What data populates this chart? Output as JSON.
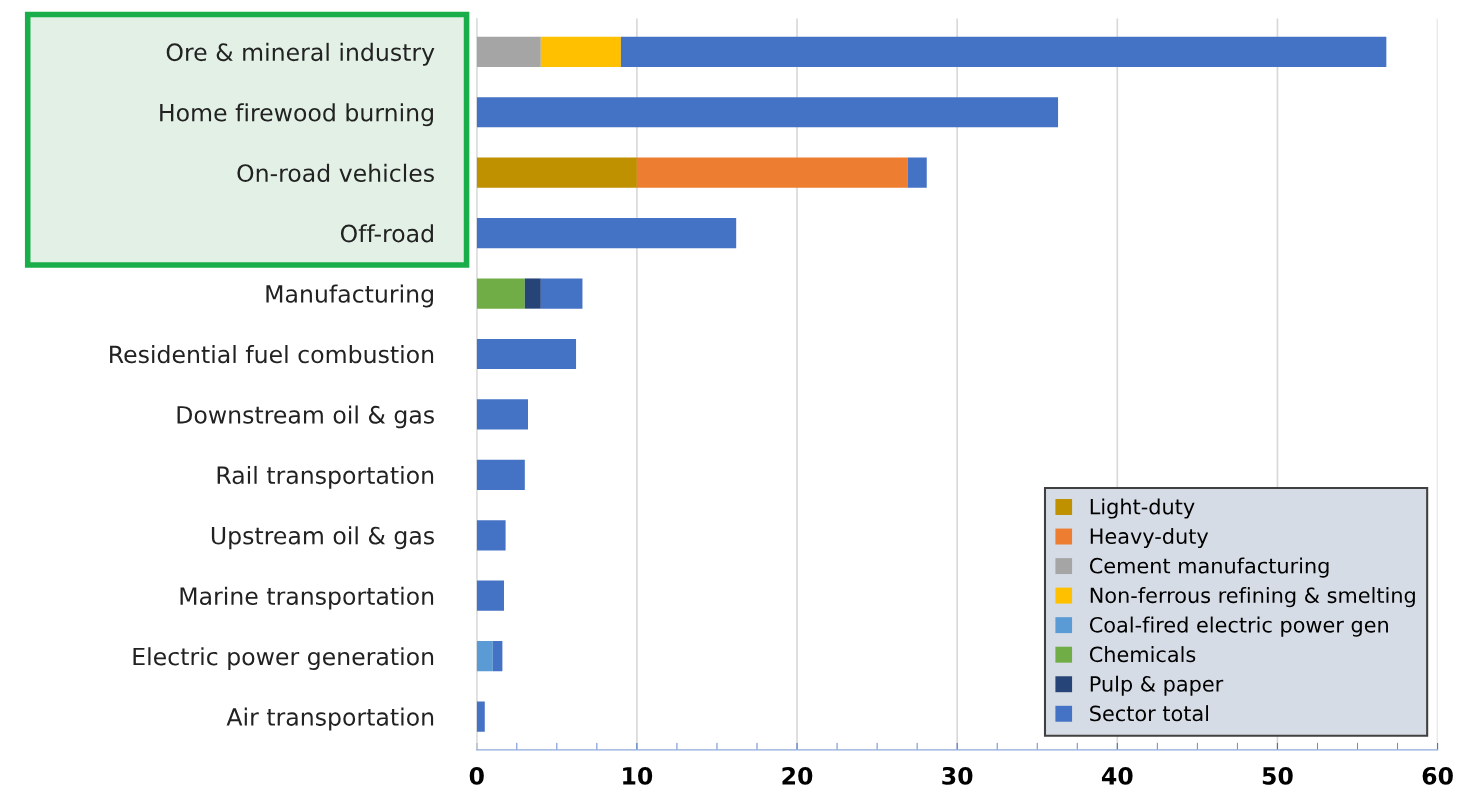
{
  "chart_data": {
    "type": "bar",
    "orientation": "horizontal",
    "stacked": true,
    "categories": [
      "Ore & mineral industry",
      "Home firewood burning",
      "On-road vehicles",
      "Off-road",
      "Manufacturing",
      "Residential fuel combustion",
      "Downstream oil & gas",
      "Rail transportation",
      "Upstream oil & gas",
      "Marine transportation",
      "Electric power generation",
      "Air transportation"
    ],
    "series": [
      {
        "name": "Light-duty",
        "color": "#bf9000",
        "values": [
          null,
          null,
          10,
          null,
          null,
          null,
          null,
          null,
          null,
          null,
          null,
          null
        ]
      },
      {
        "name": "Heavy-duty",
        "color": "#ed7d31",
        "values": [
          null,
          null,
          16.9,
          null,
          null,
          null,
          null,
          null,
          null,
          null,
          null,
          null
        ]
      },
      {
        "name": "Cement manufacturing",
        "color": "#a5a5a5",
        "values": [
          4,
          null,
          null,
          null,
          null,
          null,
          null,
          null,
          null,
          null,
          null,
          null
        ]
      },
      {
        "name": "Non-ferrous refining & smelting",
        "color": "#ffc000",
        "values": [
          5,
          null,
          null,
          null,
          null,
          null,
          null,
          null,
          null,
          null,
          null,
          null
        ]
      },
      {
        "name": "Coal-fired electric power gen",
        "color": "#5b9bd5",
        "values": [
          null,
          null,
          null,
          null,
          null,
          null,
          null,
          null,
          null,
          null,
          1.0,
          null
        ]
      },
      {
        "name": "Chemicals",
        "color": "#70ad47",
        "values": [
          null,
          null,
          null,
          null,
          3.0,
          null,
          null,
          null,
          null,
          null,
          null,
          null
        ]
      },
      {
        "name": "Pulp & paper",
        "color": "#264478",
        "values": [
          null,
          null,
          null,
          null,
          1.0,
          null,
          null,
          null,
          null,
          null,
          null,
          null
        ]
      },
      {
        "name": "Sector total",
        "color": "#4472c4",
        "values": [
          47.8,
          36.3,
          1.2,
          16.2,
          2.6,
          6.2,
          3.2,
          3.0,
          1.8,
          1.7,
          0.6,
          0.5
        ]
      }
    ],
    "xlim": [
      0,
      60
    ],
    "xticks": [
      0,
      10,
      20,
      30,
      40,
      50,
      60
    ],
    "grid": "x",
    "legend": "bottom right"
  }
}
